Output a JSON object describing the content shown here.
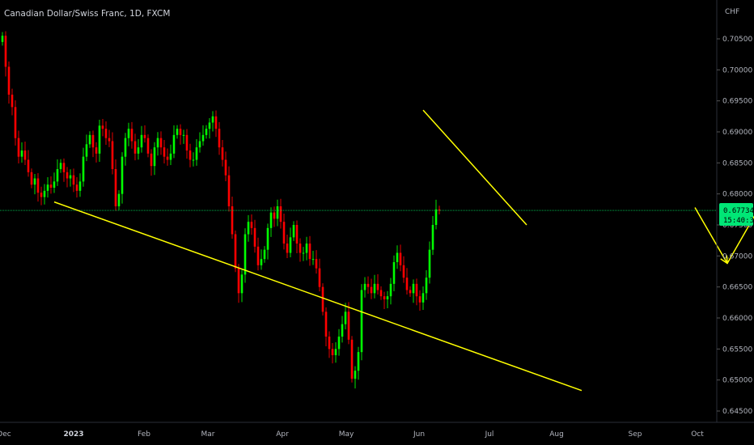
{
  "header": {
    "symbol_title": "Canadian Dollar/Swiss Franc, 1D, FXCM"
  },
  "chart_data": {
    "type": "candlestick",
    "y_axis": {
      "currency_label": "CHF",
      "ticks": [
        "0.70500",
        "0.70000",
        "0.69500",
        "0.69000",
        "0.68500",
        "0.68000",
        "0.67500",
        "0.67000",
        "0.66500",
        "0.66000",
        "0.65500",
        "0.65000",
        "0.64500"
      ],
      "ylim": [
        0.6445,
        0.7085
      ]
    },
    "x_axis": {
      "tick_labels": [
        {
          "label": "Dec",
          "bold": false
        },
        {
          "label": "2023",
          "bold": true
        },
        {
          "label": "Feb",
          "bold": false
        },
        {
          "label": "Mar",
          "bold": false
        },
        {
          "label": "Apr",
          "bold": false
        },
        {
          "label": "May",
          "bold": false
        },
        {
          "label": "Jun",
          "bold": false
        },
        {
          "label": "Jul",
          "bold": false
        },
        {
          "label": "Aug",
          "bold": false
        },
        {
          "label": "Sep",
          "bold": false
        },
        {
          "label": "Oct",
          "bold": false
        }
      ]
    },
    "current_price": {
      "price": "0.67734",
      "countdown": "15:40:38",
      "value": 0.67734
    },
    "colors": {
      "up": "#00ff00",
      "down": "#ff0000",
      "annotation": "#ffff00",
      "price_line": "#00c853",
      "background": "#000000"
    },
    "candles_close": [
      0.7055,
      0.7005,
      0.696,
      0.694,
      0.689,
      0.686,
      0.687,
      0.6855,
      0.6835,
      0.6815,
      0.6825,
      0.6802,
      0.6795,
      0.6805,
      0.6815,
      0.681,
      0.682,
      0.684,
      0.685,
      0.6835,
      0.6825,
      0.683,
      0.6815,
      0.6805,
      0.682,
      0.686,
      0.688,
      0.6895,
      0.6875,
      0.6865,
      0.691,
      0.6905,
      0.689,
      0.6885,
      0.684,
      0.678,
      0.68,
      0.686,
      0.689,
      0.6905,
      0.6885,
      0.6865,
      0.6875,
      0.6895,
      0.689,
      0.6865,
      0.6845,
      0.6875,
      0.689,
      0.6875,
      0.686,
      0.6855,
      0.6865,
      0.6895,
      0.6905,
      0.6895,
      0.6895,
      0.687,
      0.6855,
      0.6855,
      0.6875,
      0.6885,
      0.6895,
      0.6905,
      0.6915,
      0.6925,
      0.6905,
      0.6875,
      0.6855,
      0.683,
      0.678,
      0.6735,
      0.668,
      0.664,
      0.667,
      0.6735,
      0.6755,
      0.6745,
      0.6715,
      0.6685,
      0.6695,
      0.671,
      0.6745,
      0.677,
      0.676,
      0.678,
      0.6755,
      0.672,
      0.6705,
      0.673,
      0.675,
      0.672,
      0.6705,
      0.6705,
      0.672,
      0.6695,
      0.6695,
      0.668,
      0.665,
      0.661,
      0.657,
      0.655,
      0.654,
      0.655,
      0.657,
      0.659,
      0.661,
      0.6565,
      0.6502,
      0.6515,
      0.6545,
      0.6645,
      0.6655,
      0.665,
      0.664,
      0.6655,
      0.6645,
      0.6635,
      0.663,
      0.6635,
      0.6655,
      0.669,
      0.6705,
      0.6685,
      0.6665,
      0.6645,
      0.664,
      0.6655,
      0.6635,
      0.6625,
      0.664,
      0.6665,
      0.671,
      0.675,
      0.6775,
      0.6773
    ]
  },
  "annotations": {
    "descending_upper_line": {
      "start": [
        130,
        0.6935
      ],
      "end": [
        162,
        0.675
      ]
    },
    "lower_support_line": {
      "start": [
        16,
        0.6787
      ],
      "end": [
        179,
        0.6483
      ]
    },
    "projection_path": [
      [
        214,
        0.6778
      ],
      [
        224,
        0.6688
      ],
      [
        265,
        0.7062
      ]
    ]
  }
}
